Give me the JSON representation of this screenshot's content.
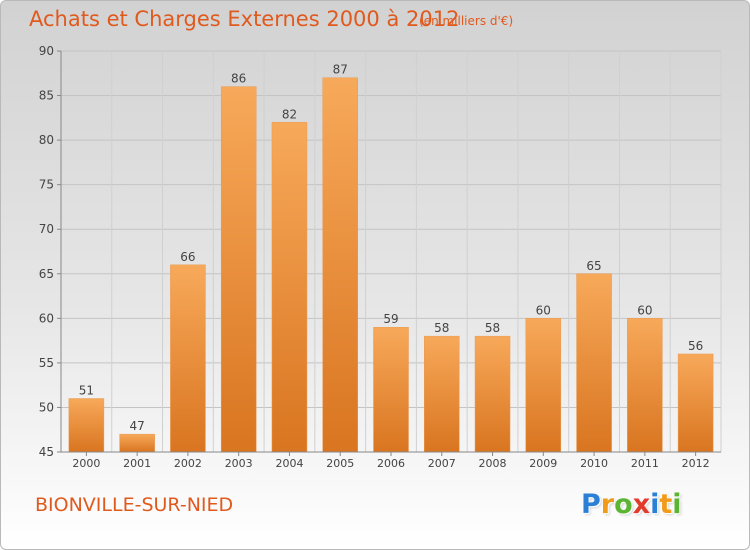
{
  "header": {
    "title": "Achats et Charges Externes 2000 à 2012",
    "subtitle": "(en milliers d'€)"
  },
  "footer": {
    "commune": "BIONVILLE-SUR-NIED",
    "logo_letters": [
      {
        "char": "P",
        "color": "#2a7fd6"
      },
      {
        "char": "r",
        "color": "#f29a1a"
      },
      {
        "char": "o",
        "color": "#5bb532"
      },
      {
        "char": "x",
        "color": "#e23b2b"
      },
      {
        "char": "i",
        "color": "#2a7fd6"
      },
      {
        "char": "t",
        "color": "#f29a1a"
      },
      {
        "char": "i",
        "color": "#5bb532"
      }
    ]
  },
  "colors": {
    "accent": "#e05a1e",
    "bar_light": "#f7a95a",
    "bar_dark": "#d97520"
  },
  "chart_data": {
    "type": "bar",
    "title": "Achats et Charges Externes 2000 à 2012",
    "subtitle": "(en milliers d'€)",
    "categories": [
      "2000",
      "2001",
      "2002",
      "2003",
      "2004",
      "2005",
      "2006",
      "2007",
      "2008",
      "2009",
      "2010",
      "2011",
      "2012"
    ],
    "values": [
      51,
      47,
      66,
      86,
      82,
      87,
      59,
      58,
      58,
      60,
      65,
      60,
      56
    ],
    "ylim": [
      45,
      90
    ],
    "yticks": [
      45,
      50,
      55,
      60,
      65,
      70,
      75,
      80,
      85,
      90
    ],
    "grid": true,
    "legend": "none",
    "data_labels": true
  }
}
